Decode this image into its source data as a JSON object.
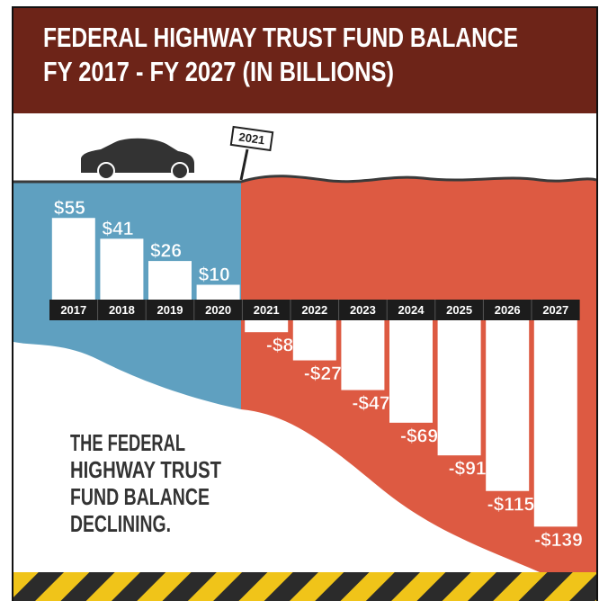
{
  "chart_data": {
    "type": "bar",
    "title": "FEDERAL HIGHWAY TRUST FUND BALANCE",
    "subtitle": "FY 2017 - FY 2027 (IN BILLIONS)",
    "categories": [
      "2017",
      "2018",
      "2019",
      "2020",
      "2021",
      "2022",
      "2023",
      "2024",
      "2025",
      "2026",
      "2027"
    ],
    "values": [
      55,
      41,
      26,
      10,
      -8,
      -27,
      -47,
      -69,
      -91,
      -115,
      -139
    ],
    "value_labels": [
      "$55",
      "$41",
      "$26",
      "$10",
      "-$8",
      "-$27",
      "-$47",
      "-$69",
      "-$91",
      "-$115",
      "-$139"
    ],
    "color": "#ffffff",
    "sign_label": "2021",
    "annotation": [
      "THE FEDERAL",
      "HIGHWAY TRUST",
      "FUND BALANCE",
      "DECLINING."
    ]
  }
}
